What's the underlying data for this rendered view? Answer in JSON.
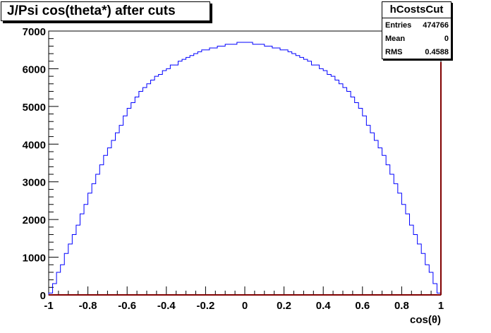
{
  "title": "J/Psi cos(theta*) after cuts",
  "stats": {
    "name": "hCostsCut",
    "rows": [
      {
        "key": "Entries",
        "value": "474766"
      },
      {
        "key": "Mean",
        "value": "0"
      },
      {
        "key": "RMS",
        "value": "0.4588"
      }
    ]
  },
  "colors": {
    "histogram_line": "#0000ff",
    "axis": "#000000",
    "zero_line": "#800000"
  },
  "chart_data": {
    "type": "bar",
    "histogram": true,
    "title": "J/Psi cos(theta*) after cuts",
    "xlabel": "cos(θ)",
    "ylabel": "",
    "xlim": [
      -1,
      1
    ],
    "ylim": [
      0,
      7000
    ],
    "bin_width": 0.02,
    "x_ticks": [
      "-1",
      "-0.8",
      "-0.6",
      "-0.4",
      "-0.2",
      "0",
      "0.2",
      "0.4",
      "0.6",
      "0.8",
      "1"
    ],
    "y_ticks": [
      "0",
      "1000",
      "2000",
      "3000",
      "4000",
      "5000",
      "6000",
      "7000"
    ],
    "grid": false,
    "legend": "none",
    "values": [
      50,
      300,
      600,
      800,
      1100,
      1350,
      1600,
      1850,
      2150,
      2400,
      2700,
      2950,
      3200,
      3450,
      3700,
      3900,
      4100,
      4300,
      4500,
      4750,
      4950,
      5100,
      5250,
      5400,
      5500,
      5600,
      5700,
      5800,
      5850,
      5950,
      6000,
      6100,
      6100,
      6200,
      6250,
      6300,
      6350,
      6400,
      6450,
      6500,
      6500,
      6550,
      6550,
      6600,
      6600,
      6650,
      6650,
      6650,
      6700,
      6700,
      6700,
      6700,
      6650,
      6650,
      6650,
      6600,
      6600,
      6550,
      6550,
      6500,
      6500,
      6450,
      6400,
      6350,
      6300,
      6250,
      6200,
      6100,
      6100,
      6000,
      5950,
      5850,
      5800,
      5700,
      5600,
      5500,
      5400,
      5250,
      5100,
      4950,
      4750,
      4500,
      4300,
      4100,
      3900,
      3700,
      3450,
      3200,
      2950,
      2700,
      2400,
      2150,
      1850,
      1600,
      1350,
      1100,
      800,
      600,
      300,
      50
    ]
  }
}
